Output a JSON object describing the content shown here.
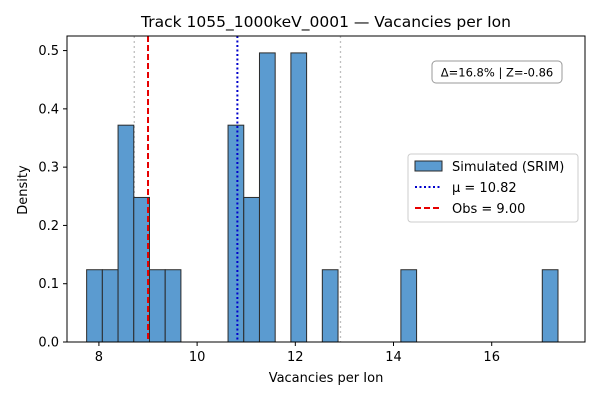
{
  "chart_data": {
    "type": "bar",
    "title": "Track 1055_1000keV_0001 — Vacancies per Ion",
    "xlabel": "Vacancies per Ion",
    "ylabel": "Density",
    "xlim": [
      7.35,
      17.9
    ],
    "ylim": [
      0,
      0.525
    ],
    "xticks": [
      8,
      10,
      12,
      14,
      16
    ],
    "yticks": [
      0.0,
      0.1,
      0.2,
      0.3,
      0.4,
      0.5
    ],
    "bin_width": 0.32,
    "bins": [
      {
        "x0": 7.75,
        "density": 0.124
      },
      {
        "x0": 8.07,
        "density": 0.124
      },
      {
        "x0": 8.39,
        "density": 0.372
      },
      {
        "x0": 8.71,
        "density": 0.248
      },
      {
        "x0": 9.03,
        "density": 0.124
      },
      {
        "x0": 9.35,
        "density": 0.124
      },
      {
        "x0": 10.63,
        "density": 0.372
      },
      {
        "x0": 10.95,
        "density": 0.248
      },
      {
        "x0": 11.27,
        "density": 0.496
      },
      {
        "x0": 11.91,
        "density": 0.496
      },
      {
        "x0": 12.55,
        "density": 0.124
      },
      {
        "x0": 14.15,
        "density": 0.124
      },
      {
        "x0": 17.03,
        "density": 0.124
      }
    ],
    "mean": 10.82,
    "observed": 9.0,
    "sigma_lines": [
      8.72,
      12.92
    ],
    "legend": {
      "placement": "center-right",
      "entries": [
        "Simulated (SRIM)",
        "μ = 10.82",
        "Obs = 9.00"
      ]
    },
    "annotation": "Δ=16.8% | Z=-0.86",
    "colors": {
      "bar_fill": "#5b9bd0",
      "bar_edge": "#2a2a2a",
      "mean_line": "#0000cc",
      "obs_line": "#e60000",
      "sigma_line": "#bfbfbf"
    }
  }
}
